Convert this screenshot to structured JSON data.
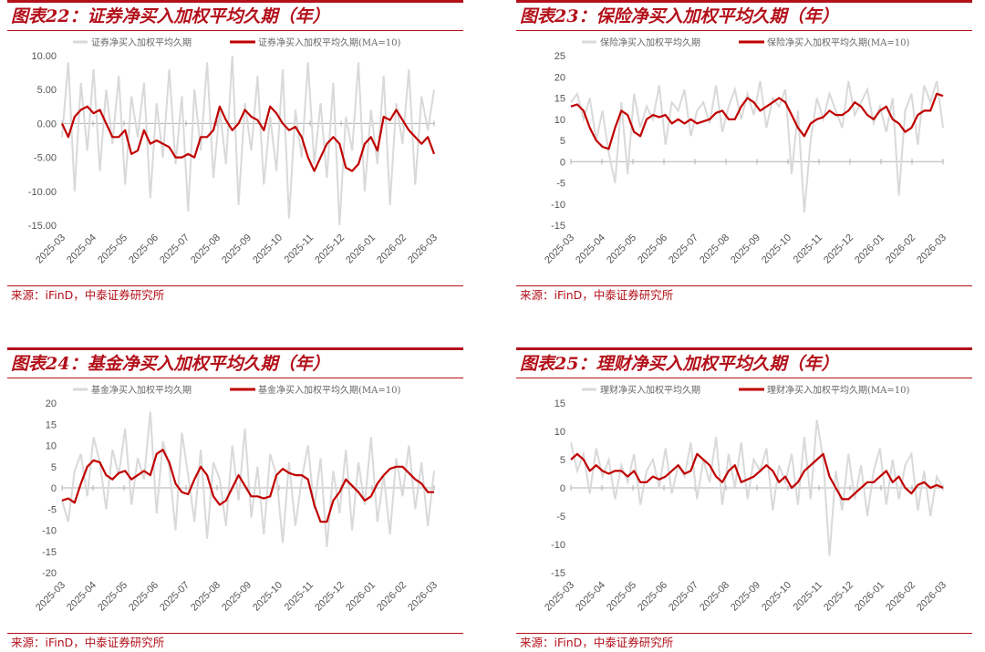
{
  "colors": {
    "accent": "#b3101a",
    "raw_series": "#d9d9d9",
    "ma_series": "#c00000"
  },
  "chart_data": [
    {
      "type": "line",
      "title": "图表22：证券净买入加权平均久期（年）",
      "source": "来源：iFinD，中泰证券研究所",
      "x_ticks": [
        "2025-03",
        "2025-04",
        "2025-05",
        "2025-06",
        "2025-07",
        "2025-08",
        "2025-09",
        "2025-10",
        "2025-11",
        "2025-12",
        "2026-01",
        "2026-02",
        "2026-03"
      ],
      "y_ticks": [
        "10.00",
        "5.00",
        "0.00",
        "-5.00",
        "-10.00",
        "-15.00"
      ],
      "ylim": [
        -15,
        10
      ],
      "legend_position": "top",
      "series": [
        {
          "name": "证券净买入加权平均久期",
          "kind": "raw",
          "values": [
            -2,
            9,
            -10,
            6,
            -4,
            8,
            -7,
            5,
            -3,
            7,
            -9,
            4,
            -2,
            6,
            -11,
            3,
            -5,
            8,
            -6,
            4,
            -13,
            5,
            -4,
            9,
            -8,
            2,
            -6,
            10,
            -12,
            3,
            -4,
            7,
            -9,
            1,
            -7,
            8,
            -14,
            2,
            -5,
            9,
            -6,
            3,
            -8,
            6,
            -15,
            1,
            -4,
            9,
            -10,
            2,
            -6,
            7,
            -12,
            3,
            -3,
            8,
            -9,
            4,
            -1,
            5
          ]
        },
        {
          "name": "证券净买入加权平均久期(MA=10)",
          "kind": "ma",
          "values": [
            0,
            -2,
            1,
            2,
            2.5,
            1.5,
            2,
            0,
            -2,
            -2,
            -1,
            -4.5,
            -4,
            -1,
            -3,
            -2.5,
            -3,
            -3.5,
            -5,
            -5,
            -4.5,
            -5,
            -2,
            -2,
            -1,
            2.5,
            0.5,
            -1,
            0,
            2,
            1,
            0.5,
            -1,
            2.5,
            1.5,
            0,
            -1,
            -0.5,
            -2,
            -5,
            -7,
            -5,
            -3,
            -2,
            -3,
            -6.5,
            -7,
            -6,
            -3,
            -2,
            -4,
            1,
            0.5,
            2,
            0.5,
            -1,
            -2,
            -3,
            -2,
            -4.5
          ]
        }
      ]
    },
    {
      "type": "line",
      "title": "图表23：保险净买入加权平均久期（年）",
      "source": "来源：iFinD，中泰证券研究所",
      "x_ticks": [
        "2025-03",
        "2025-04",
        "2025-05",
        "2025-06",
        "2025-07",
        "2025-08",
        "2025-09",
        "2025-10",
        "2025-11",
        "2025-12",
        "2026-01",
        "2026-02",
        "2026-03"
      ],
      "y_ticks": [
        "25",
        "20",
        "15",
        "10",
        "5",
        "0",
        "-5",
        "-10",
        "-15"
      ],
      "ylim": [
        -15,
        25
      ],
      "legend_position": "top",
      "series": [
        {
          "name": "保险净买入加权平均久期",
          "kind": "raw",
          "values": [
            14,
            16,
            10,
            15,
            5,
            12,
            2,
            -5,
            14,
            -3,
            16,
            8,
            13,
            10,
            18,
            4,
            14,
            12,
            17,
            6,
            12,
            14,
            9,
            18,
            7,
            13,
            17,
            10,
            16,
            11,
            19,
            8,
            15,
            13,
            17,
            -3,
            12,
            -12,
            5,
            15,
            10,
            16,
            12,
            8,
            19,
            11,
            14,
            17,
            9,
            13,
            7,
            15,
            -8,
            12,
            16,
            4,
            18,
            14,
            19,
            8
          ]
        },
        {
          "name": "保险净买入加权平均久期(MA=10)",
          "kind": "ma",
          "values": [
            13,
            13.5,
            12,
            8,
            5,
            3.5,
            3,
            8,
            12,
            11,
            7,
            6,
            10,
            11,
            10.5,
            11,
            9,
            10,
            9,
            10,
            9,
            9.5,
            10,
            11.5,
            12,
            10,
            10,
            13,
            15,
            14,
            12,
            13,
            14,
            15,
            14,
            11,
            8,
            6,
            9,
            10,
            10.5,
            12,
            11,
            11,
            12,
            14,
            13,
            11,
            10,
            12,
            13,
            10,
            9,
            7,
            8,
            11,
            12,
            12,
            16,
            15.5
          ]
        }
      ]
    },
    {
      "type": "line",
      "title": "图表24：基金净买入加权平均久期（年）",
      "source": "来源：iFinD，中泰证券研究所",
      "x_ticks": [
        "2025-03",
        "2025-04",
        "2025-05",
        "2025-06",
        "2025-07",
        "2025-08",
        "2025-09",
        "2025-10",
        "2025-11",
        "2025-12",
        "2026-01",
        "2026-02",
        "2026-03"
      ],
      "y_ticks": [
        "20",
        "15",
        "10",
        "5",
        "0",
        "-5",
        "-10",
        "-15",
        "-20"
      ],
      "ylim": [
        -20,
        20
      ],
      "legend_position": "top",
      "series": [
        {
          "name": "基金净买入加权平均久期",
          "kind": "raw",
          "values": [
            -3,
            -8,
            4,
            8,
            -2,
            12,
            6,
            -5,
            9,
            3,
            14,
            -4,
            7,
            2,
            18,
            -6,
            11,
            5,
            -10,
            13,
            3,
            -8,
            9,
            -12,
            6,
            2,
            -9,
            10,
            -3,
            14,
            -7,
            5,
            -11,
            8,
            3,
            -13,
            6,
            -9,
            2,
            10,
            -5,
            7,
            -14,
            4,
            -6,
            9,
            -10,
            6,
            -4,
            12,
            -8,
            3,
            -11,
            7,
            -2,
            10,
            -5,
            6,
            -9,
            4
          ]
        },
        {
          "name": "基金净买入加权平均久期(MA=10)",
          "kind": "ma",
          "values": [
            -3,
            -2.5,
            -3.5,
            1,
            5,
            6.5,
            6,
            3,
            2,
            3.5,
            4,
            2,
            3,
            4,
            3,
            8,
            9,
            6,
            1,
            -1,
            -1.5,
            2,
            5,
            3,
            -2,
            -4,
            -3,
            0,
            3,
            0.5,
            -2,
            -2,
            -2.5,
            -2,
            3,
            4.5,
            3.5,
            3,
            3,
            2,
            -4,
            -8,
            -8,
            -3,
            -1,
            2,
            0.5,
            -1,
            -3,
            -2,
            1,
            3,
            4.5,
            5,
            5,
            3.5,
            2,
            1,
            -1,
            -1
          ]
        }
      ]
    },
    {
      "type": "line",
      "title": "图表25：理财净买入加权平均久期（年）",
      "source": "来源：iFinD，中泰证券研究所",
      "x_ticks": [
        "2025-03",
        "2025-04",
        "2025-05",
        "2025-06",
        "2025-07",
        "2025-08",
        "2025-09",
        "2025-10",
        "2025-11",
        "2025-12",
        "2026-01",
        "2026-02",
        "2026-03"
      ],
      "y_ticks": [
        "15",
        "10",
        "5",
        "0",
        "-5",
        "-10",
        "-15"
      ],
      "ylim": [
        -15,
        15
      ],
      "legend_position": "top",
      "series": [
        {
          "name": "理财净买入加权平均久期",
          "kind": "raw",
          "values": [
            8,
            3,
            6,
            -1,
            7,
            2,
            5,
            -2,
            4,
            1,
            6,
            -3,
            3,
            5,
            0,
            7,
            -1,
            4,
            2,
            8,
            -2,
            5,
            1,
            9,
            -3,
            6,
            0,
            8,
            -2,
            5,
            3,
            7,
            -4,
            4,
            1,
            6,
            -3,
            9,
            -2,
            12,
            5,
            -12,
            3,
            -4,
            6,
            -2,
            4,
            -5,
            3,
            7,
            -3,
            5,
            -2,
            4,
            6,
            -4,
            3,
            -5,
            2,
            0
          ]
        },
        {
          "name": "理财净买入加权平均久期(MA=10)",
          "kind": "ma",
          "values": [
            5,
            6,
            5,
            3,
            4,
            3,
            2.5,
            3,
            3,
            2,
            3,
            1,
            1,
            2,
            1.5,
            2,
            3,
            4,
            2.5,
            3,
            6,
            5,
            4,
            2,
            1,
            3,
            4,
            1,
            1.5,
            2,
            3,
            4,
            3,
            1,
            2,
            0,
            1,
            3,
            4,
            5,
            6,
            2,
            0,
            -2,
            -2,
            -1,
            0,
            1,
            1,
            2,
            3,
            1,
            2,
            0,
            -1,
            0.5,
            1,
            0,
            0.5,
            0
          ]
        }
      ]
    }
  ]
}
